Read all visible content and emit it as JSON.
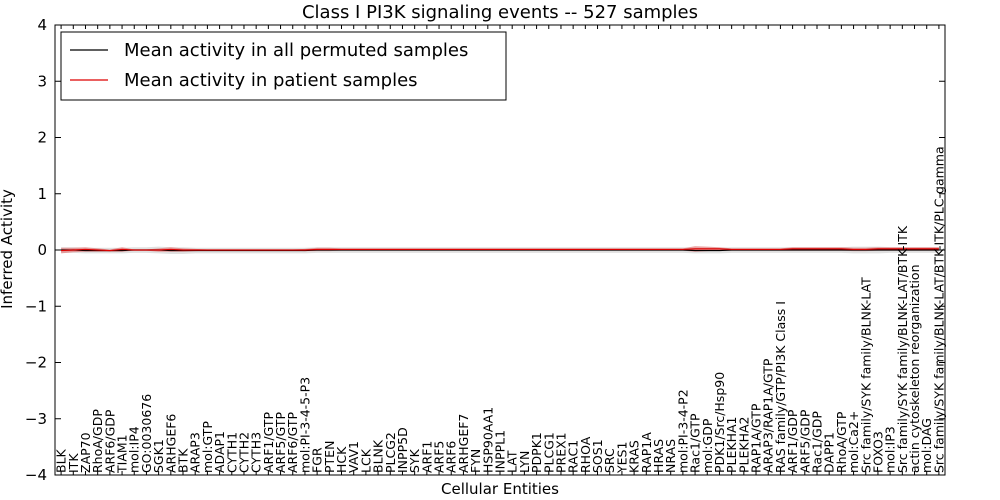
{
  "chart_data": {
    "type": "line",
    "title": "Class I PI3K signaling events -- 527 samples",
    "xlabel": "Cellular Entities",
    "ylabel": "Inferred Activity",
    "ylim": [
      -4,
      4
    ],
    "yticks": [
      -4,
      -3,
      -2,
      -1,
      0,
      1,
      2,
      3,
      4
    ],
    "ytick_labels": [
      "−4",
      "−3",
      "−2",
      "−1",
      "0",
      "1",
      "2",
      "3",
      "4"
    ],
    "grid": false,
    "legend_position": "top-left",
    "categories": [
      "BLK",
      "ITK",
      "ZAP70",
      "RhoA/GDP",
      "ARF6/GDP",
      "TIAM1",
      "mol:IP4",
      "GO:0030676",
      "SGK1",
      "ARHGEF6",
      "BTK",
      "ARAP3",
      "mol:GTP",
      "ADAP1",
      "CYTH1",
      "CYTH2",
      "CYTH3",
      "ARF1/GTP",
      "ARF5/GTP",
      "ARF6/GTP",
      "mol:PI-3-4-5-P3",
      "FGR",
      "PTEN",
      "HCK",
      "VAV1",
      "LCK",
      "BLNK",
      "PLCG2",
      "INPP5D",
      "SYK",
      "ARF1",
      "ARF5",
      "ARF6",
      "ARHGEF7",
      "FYN",
      "HSP90AA1",
      "INPPL1",
      "LAT",
      "LYN",
      "PDPK1",
      "PLCG1",
      "PREX1",
      "RAC1",
      "RHOA",
      "SOS1",
      "SRC",
      "YES1",
      "KRAS",
      "RAP1A",
      "HRAS",
      "NRAS",
      "mol:PI-3-4-P2",
      "Rac1/GTP",
      "mol:GDP",
      "PDK1/Src/Hsp90",
      "PLEKHA1",
      "PLEKHA2",
      "RAP1A/GTP",
      "ARAP3/RAP1A/GTP",
      "RAS family/GTP/PI3K Class I",
      "ARF1/GDP",
      "ARF5/GDP",
      "Rac1/GDP",
      "DAPP1",
      "RhoA/GTP",
      "mol:Ca2+",
      "Src family/SYK family/BLNK-LAT",
      "FOXO3",
      "mol:IP3",
      "Src family/SYK family/BLNK-LAT/BTK-ITK",
      "actin cytoskeleton reorganization",
      "mol:DAG",
      "Src family/SYK family/BLNK-LAT/BTK-ITK/PLC-gamma"
    ],
    "series": [
      {
        "name": "Mean activity in all permuted samples",
        "color": "#000000",
        "band_color": "#bbbbbb",
        "values": [
          0,
          0,
          -0.01,
          -0.01,
          -0.01,
          -0.01,
          0,
          0,
          0,
          -0.01,
          -0.01,
          -0.01,
          -0.01,
          -0.01,
          -0.01,
          -0.01,
          -0.01,
          -0.01,
          -0.01,
          -0.01,
          -0.01,
          0,
          0,
          0,
          0,
          0,
          0,
          0,
          0,
          0,
          0,
          0,
          0,
          0,
          0,
          0,
          0,
          0,
          0,
          0,
          0,
          0,
          0,
          0,
          0,
          0,
          0,
          0,
          0,
          0,
          0,
          0,
          -0.01,
          -0.01,
          -0.01,
          0,
          0,
          0,
          0,
          0,
          0,
          0,
          0,
          0,
          0,
          0,
          0,
          0,
          0,
          0,
          0,
          0,
          0
        ],
        "band": [
          0.05,
          0.05,
          0.05,
          0.05,
          0.05,
          0.05,
          0.05,
          0.05,
          0.06,
          0.06,
          0.06,
          0.05,
          0.05,
          0.05,
          0.05,
          0.05,
          0.05,
          0.05,
          0.05,
          0.05,
          0.05,
          0.05,
          0.05,
          0.05,
          0.05,
          0.05,
          0.05,
          0.05,
          0.05,
          0.05,
          0.05,
          0.05,
          0.05,
          0.05,
          0.05,
          0.05,
          0.05,
          0.05,
          0.05,
          0.05,
          0.05,
          0.05,
          0.05,
          0.05,
          0.05,
          0.05,
          0.05,
          0.05,
          0.05,
          0.05,
          0.05,
          0.05,
          0.05,
          0.05,
          0.05,
          0.05,
          0.05,
          0.05,
          0.05,
          0.05,
          0.05,
          0.05,
          0.05,
          0.05,
          0.05,
          0.06,
          0.06,
          0.06,
          0.05,
          0.05,
          0.05,
          0.05,
          0.05
        ]
      },
      {
        "name": "Mean activity in patient samples",
        "color": "#dd0000",
        "band_color": "#e06060",
        "values": [
          -0.01,
          0,
          0.01,
          0,
          -0.01,
          0.01,
          0,
          0,
          0,
          0.01,
          0,
          0,
          0,
          0,
          0,
          0,
          0,
          0,
          0,
          0,
          0,
          0.01,
          0.01,
          0.01,
          0.01,
          0.01,
          0.01,
          0.01,
          0.01,
          0.01,
          0.01,
          0.01,
          0.01,
          0.01,
          0.01,
          0.01,
          0.01,
          0.01,
          0.01,
          0.01,
          0.01,
          0.01,
          0.01,
          0.01,
          0.01,
          0.01,
          0.01,
          0.01,
          0.01,
          0.01,
          0.01,
          0.01,
          0.02,
          0.02,
          0.02,
          0.01,
          0.01,
          0.01,
          0.01,
          0.01,
          0.02,
          0.02,
          0.02,
          0.02,
          0.02,
          0.01,
          0.01,
          0.02,
          0.02,
          0.02,
          0.02,
          0.02,
          0.02
        ],
        "band": [
          0.05,
          0.04,
          0.04,
          0.03,
          0.02,
          0.04,
          0.01,
          0.01,
          0.03,
          0.04,
          0.03,
          0.02,
          0.01,
          0.01,
          0.01,
          0.01,
          0.01,
          0.01,
          0.01,
          0.01,
          0.02,
          0.03,
          0.03,
          0.02,
          0.02,
          0.02,
          0.02,
          0.02,
          0.02,
          0.02,
          0.02,
          0.02,
          0.02,
          0.02,
          0.02,
          0.02,
          0.02,
          0.02,
          0.02,
          0.02,
          0.02,
          0.02,
          0.02,
          0.02,
          0.02,
          0.02,
          0.02,
          0.02,
          0.02,
          0.02,
          0.02,
          0.02,
          0.05,
          0.04,
          0.03,
          0.02,
          0.02,
          0.02,
          0.02,
          0.02,
          0.03,
          0.03,
          0.03,
          0.03,
          0.03,
          0.03,
          0.03,
          0.03,
          0.03,
          0.03,
          0.03,
          0.03,
          0.03
        ]
      }
    ]
  }
}
